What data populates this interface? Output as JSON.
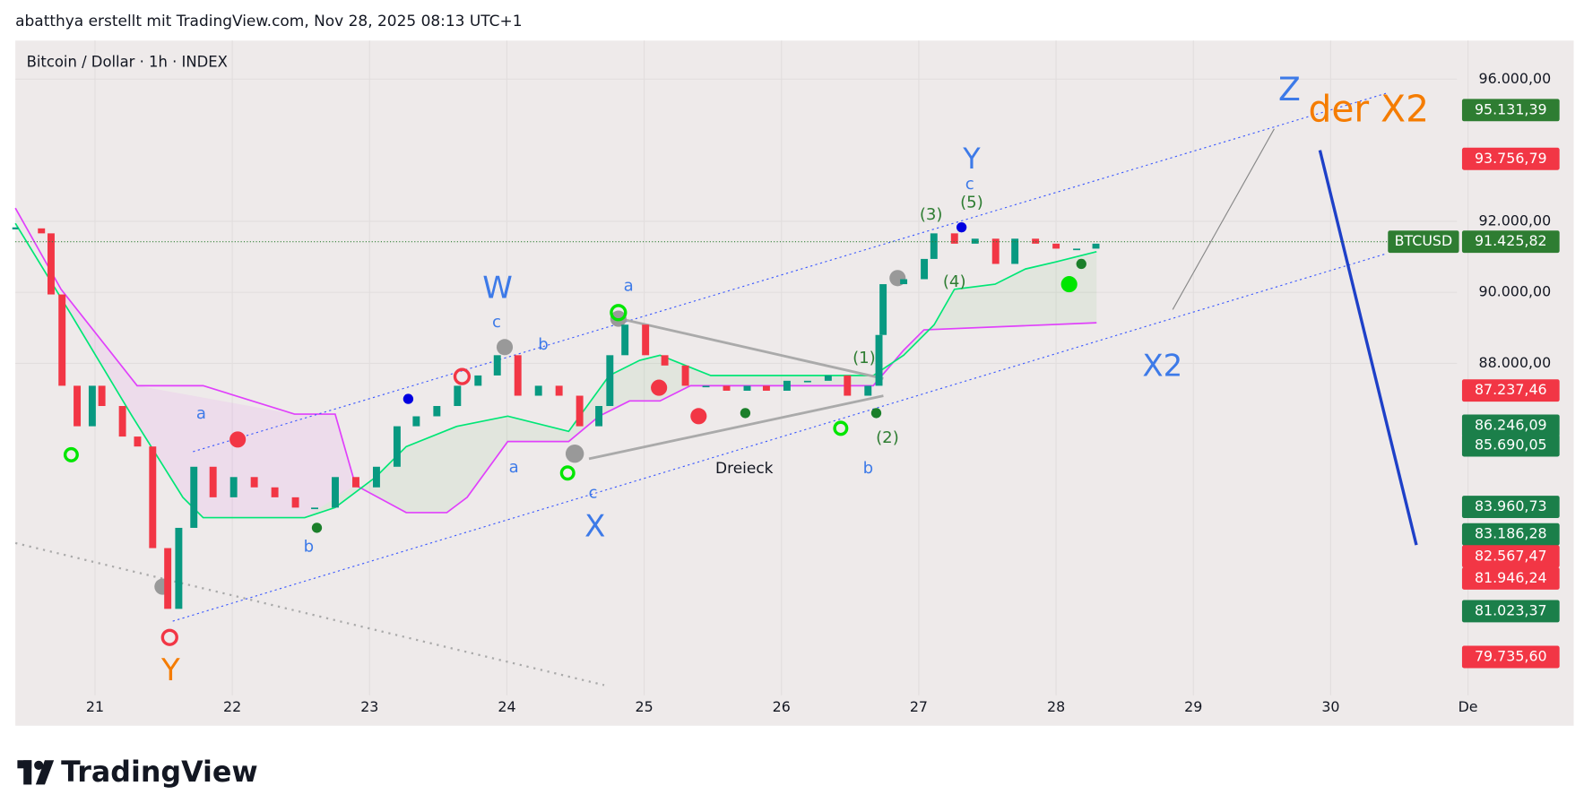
{
  "chart_data": {
    "type": "candlestick",
    "caption": "abatthya erstellt mit TradingView.com, Nov 28, 2025 08:13 UTC+1",
    "title": "Bitcoin / Dollar · 1h · INDEX",
    "brand": "TradingView",
    "x": [
      20.42,
      20.61,
      20.68,
      20.76,
      20.87,
      20.98,
      21.05,
      21.2,
      21.31,
      21.42,
      21.53,
      21.61,
      21.72,
      21.86,
      22.01,
      22.16,
      22.31,
      22.46,
      22.6,
      22.75,
      22.9,
      23.05,
      23.2,
      23.34,
      23.49,
      23.64,
      23.79,
      23.93,
      24.08,
      24.23,
      24.38,
      24.53,
      24.67,
      24.75,
      24.86,
      25.01,
      25.15,
      25.3,
      25.45,
      25.6,
      25.75,
      25.89,
      26.04,
      26.19,
      26.34,
      26.48,
      26.63,
      26.71,
      26.74,
      26.89,
      27.04,
      27.11,
      27.26,
      27.41,
      27.56,
      27.7,
      27.85,
      28.0,
      28.15,
      28.29
    ],
    "values": [
      91800,
      91660,
      89940,
      87370,
      86230,
      87370,
      86800,
      85940,
      85660,
      82800,
      81090,
      83370,
      85090,
      84230,
      84800,
      84510,
      84230,
      83940,
      83940,
      84800,
      84510,
      85090,
      86230,
      86510,
      86800,
      87370,
      87660,
      88230,
      87090,
      87370,
      87090,
      86230,
      86800,
      88230,
      89090,
      88230,
      87940,
      87370,
      87370,
      87230,
      87370,
      87230,
      87510,
      87510,
      87660,
      87090,
      87370,
      88800,
      90230,
      90370,
      90940,
      91660,
      91370,
      91510,
      90800,
      91510,
      91370,
      91230,
      91230,
      91370
    ],
    "up_color": "#089981",
    "down_color": "#f23645",
    "xlim": [
      20.42,
      31.77
    ],
    "xticks": [
      {
        "value": 21,
        "label": "21"
      },
      {
        "value": 22,
        "label": "22"
      },
      {
        "value": 23,
        "label": "23"
      },
      {
        "value": 24,
        "label": "24"
      },
      {
        "value": 25,
        "label": "25"
      },
      {
        "value": 26,
        "label": "26"
      },
      {
        "value": 27,
        "label": "27"
      },
      {
        "value": 28,
        "label": "28"
      },
      {
        "value": 29,
        "label": "29"
      },
      {
        "value": 30,
        "label": "30"
      },
      {
        "value": 31,
        "label": "De"
      }
    ],
    "ylim": [
      77800,
      97086
    ],
    "yticks": [
      {
        "value": 96000,
        "label": "96.000,00"
      },
      {
        "value": 92000,
        "label": "92.000,00"
      },
      {
        "value": 90000,
        "label": "90.000,00"
      },
      {
        "value": 88000,
        "label": "88.000,00"
      }
    ],
    "grid": true,
    "symbol_tag": "BTCUSD",
    "last_price": {
      "value": 91425.82,
      "label": "91.425,82",
      "color": "#2e7d32"
    },
    "price_labels": [
      {
        "value": 95131.39,
        "label": "95.131,39",
        "color": "#2e7d32"
      },
      {
        "value": 93756.79,
        "label": "93.756,79",
        "color": "#f23645"
      },
      {
        "value": 87237.46,
        "label": "87.237,46",
        "color": "#f23645"
      },
      {
        "value": 86246.09,
        "label": "86.246,09",
        "color": "#1b7f4a"
      },
      {
        "value": 85690.05,
        "label": "85.690,05",
        "color": "#1b7f4a"
      },
      {
        "value": 83960.73,
        "label": "83.960,73",
        "color": "#1b7f4a"
      },
      {
        "value": 83186.28,
        "label": "83.186,28",
        "color": "#1b7f4a"
      },
      {
        "value": 82567.47,
        "label": "82.567,47",
        "color": "#f23645"
      },
      {
        "value": 81946.24,
        "label": "81.946,24",
        "color": "#f23645"
      },
      {
        "value": 81023.37,
        "label": "81.023,37",
        "color": "#1b7f4a"
      },
      {
        "value": 79735.6,
        "label": "79.735,60",
        "color": "#f23645"
      }
    ],
    "annotations": [
      {
        "text": "Z",
        "color": "#3d7ae8"
      },
      {
        "text": "der X2",
        "color": "#f57c00"
      },
      {
        "text": "Y",
        "color": "#3d7ae8"
      },
      {
        "text": "c",
        "color": "#3d7ae8"
      },
      {
        "text": "(5)",
        "color": "#2e7d32"
      },
      {
        "text": "(3)",
        "color": "#2e7d32"
      },
      {
        "text": "(4)",
        "color": "#2e7d32"
      },
      {
        "text": "W",
        "color": "#3d7ae8"
      },
      {
        "text": "c",
        "color": "#3d7ae8"
      },
      {
        "text": "b",
        "color": "#3d7ae8"
      },
      {
        "text": "a",
        "color": "#3d7ae8"
      },
      {
        "text": "a",
        "color": "#3d7ae8"
      },
      {
        "text": "a",
        "color": "#3d7ae8"
      },
      {
        "text": "c",
        "color": "#3d7ae8"
      },
      {
        "text": "X",
        "color": "#3d7ae8"
      },
      {
        "text": "Dreieck",
        "color": "#131722"
      },
      {
        "text": "(1)",
        "color": "#2e7d32"
      },
      {
        "text": "(2)",
        "color": "#2e7d32"
      },
      {
        "text": "b",
        "color": "#3d7ae8"
      },
      {
        "text": "b",
        "color": "#3d7ae8"
      },
      {
        "text": "Y",
        "color": "#f57c00"
      },
      {
        "text": "X2",
        "color": "#3d7ae8"
      }
    ]
  }
}
